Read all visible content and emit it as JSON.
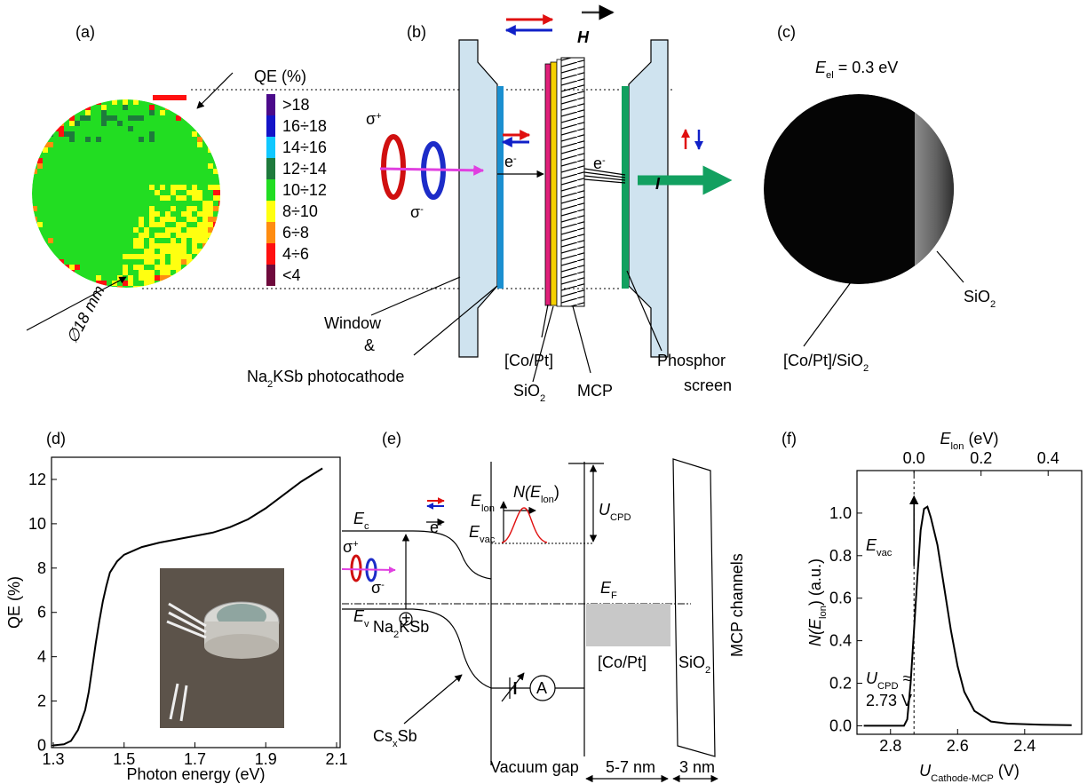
{
  "labels": {
    "a": "(a)",
    "b": "(b)",
    "c": "(c)",
    "d": "(d)",
    "e": "(e)",
    "f": "(f)"
  },
  "panel_a": {
    "legend_title": "QE (%)",
    "legend": [
      ">18",
      "16÷18",
      "14÷16",
      "12÷14",
      "10÷12",
      "8÷10",
      "6÷8",
      "4÷6",
      "<4"
    ],
    "legend_colors": [
      "#4b0a8a",
      "#1414c8",
      "#10c8ff",
      "#1e7a3c",
      "#22dd22",
      "#ffff10",
      "#ff8c10",
      "#ff1010",
      "#6e0a3c"
    ],
    "diameter": "∅18 mm"
  },
  "panel_b": {
    "field": "H",
    "sigma_plus": [
      "σ",
      "+"
    ],
    "sigma_minus": [
      "σ",
      "-"
    ],
    "electron_in": [
      "e",
      "-"
    ],
    "electron_out": [
      "e",
      "-"
    ],
    "current": "I",
    "window": "Window",
    "and": "&",
    "photocathode": [
      "Na",
      "2",
      "KSb photocathode"
    ],
    "copt": "[Co/Pt]",
    "sio2": [
      "SiO",
      "2"
    ],
    "mcp": "MCP",
    "phosphor": "Phosphor",
    "screen": "screen"
  },
  "panel_c": {
    "energy": [
      "E",
      "el",
      " = 0.3 eV"
    ],
    "sio2": [
      "SiO",
      "2"
    ],
    "copt_sio2": [
      "[Co/Pt]/SiO",
      "2"
    ]
  },
  "panel_e": {
    "ec": [
      "E",
      "c"
    ],
    "ev": [
      "E",
      "v"
    ],
    "electron": [
      "e",
      "-"
    ],
    "sigma_plus": [
      "σ",
      "+"
    ],
    "sigma_minus": [
      "σ",
      "-"
    ],
    "hole": "+",
    "elon": [
      "E",
      "lon"
    ],
    "nelon": [
      "N(E",
      "lon",
      ")"
    ],
    "evac": [
      "E",
      "vac"
    ],
    "ucpd": [
      "U",
      "CPD"
    ],
    "ef": [
      "E",
      "F"
    ],
    "na2ksb": [
      "Na",
      "2",
      "KSb"
    ],
    "csxsb": [
      "Cs",
      "x",
      "Sb"
    ],
    "ammeter": "A",
    "copt": "[Co/Pt]",
    "sio2": [
      "SiO",
      "2"
    ],
    "mcp_channels": "MCP channels",
    "vacuum_gap": "Vacuum gap",
    "gap1": "5-7 nm",
    "gap2": "3 nm"
  },
  "chart_data": [
    {
      "type": "line",
      "x_label": "Photon energy (eV)",
      "y_label": "QE (%)",
      "color": "#000000",
      "xlim": [
        1.295,
        2.11
      ],
      "ylim": [
        -0.1,
        13
      ],
      "xticks": [
        1.3,
        1.5,
        1.7,
        1.9,
        2.1
      ],
      "yticks": [
        0,
        2,
        4,
        6,
        8,
        10,
        12
      ],
      "x": [
        1.3,
        1.33,
        1.35,
        1.37,
        1.39,
        1.4,
        1.41,
        1.42,
        1.43,
        1.44,
        1.45,
        1.46,
        1.48,
        1.5,
        1.55,
        1.6,
        1.65,
        1.7,
        1.75,
        1.8,
        1.85,
        1.9,
        1.95,
        2.0,
        2.06
      ],
      "values": [
        0,
        0.05,
        0.2,
        0.7,
        1.6,
        2.4,
        3.5,
        4.6,
        5.6,
        6.5,
        7.2,
        7.8,
        8.3,
        8.6,
        8.95,
        9.15,
        9.3,
        9.45,
        9.6,
        9.85,
        10.2,
        10.7,
        11.3,
        11.9,
        12.5
      ]
    },
    {
      "type": "line",
      "x_label": [
        "U",
        "Cathode-MCP",
        " (V)"
      ],
      "x2_label": [
        "E",
        "lon",
        " (eV)"
      ],
      "y_label": [
        "N(E",
        "lon",
        ") (a.u.)"
      ],
      "color": "#000000",
      "xlim": [
        2.9,
        2.23
      ],
      "x2lim": [
        -0.17,
        0.5
      ],
      "ylim": [
        -0.04,
        1.2
      ],
      "xticks": [
        2.8,
        2.6,
        2.4
      ],
      "x2ticks": [
        {
          "value": 0,
          "label": "0.0"
        },
        0.2,
        0.4
      ],
      "yticks": [
        {
          "value": 0,
          "label": "0.0"
        },
        0.2,
        0.4,
        0.6,
        0.8,
        {
          "value": 1,
          "label": "1.0"
        }
      ],
      "vline": 2.73,
      "annotations": {
        "evac": [
          "E",
          "vac"
        ],
        "ucpd": [
          "U",
          "CPD",
          " ≈"
        ],
        "ucpd_value": "2.73 V"
      },
      "x": [
        2.88,
        2.8,
        2.76,
        2.75,
        2.74,
        2.73,
        2.72,
        2.71,
        2.7,
        2.69,
        2.68,
        2.66,
        2.64,
        2.62,
        2.6,
        2.58,
        2.55,
        2.5,
        2.45,
        2.35,
        2.26
      ],
      "values": [
        0,
        0,
        0,
        0.03,
        0.2,
        0.45,
        0.7,
        0.92,
        1.02,
        1.03,
        0.98,
        0.85,
        0.65,
        0.45,
        0.28,
        0.16,
        0.07,
        0.02,
        0.01,
        0.005,
        0.003
      ]
    }
  ]
}
